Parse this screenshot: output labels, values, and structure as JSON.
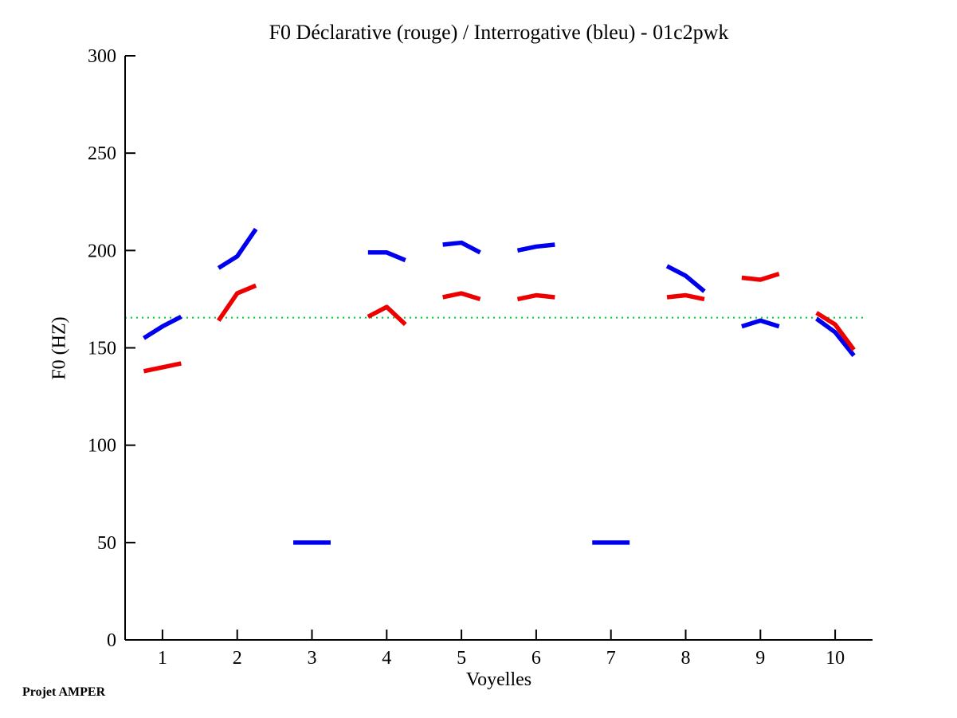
{
  "figure": {
    "background": "#FFFFFF"
  },
  "chart_data": {
    "type": "line",
    "title": "F0 Déclarative (rouge) / Interrogative (bleu) - 01c2pwk",
    "xlabel": "Voyelles",
    "ylabel": "F0 (HZ)",
    "footer": "Projet AMPER",
    "xlim": [
      0.5,
      10.5
    ],
    "ylim": [
      0,
      300
    ],
    "x_ticks": [
      1,
      2,
      3,
      4,
      5,
      6,
      7,
      8,
      9,
      10
    ],
    "y_ticks": [
      0,
      50,
      100,
      150,
      200,
      250,
      300
    ],
    "grid": false,
    "axis_color": "#000000",
    "legend_position": "none",
    "reference_line": {
      "y": 165.5,
      "color": "#00CC33",
      "style": "dotted",
      "x_start": 0.5,
      "x_end": 10.42
    },
    "series": [
      {
        "name": "interrogative",
        "label": "Interrogative (bleu)",
        "color": "#0000EE",
        "segments": [
          {
            "x": [
              0.75,
              1.0,
              1.25
            ],
            "y": [
              155,
              161,
              166
            ]
          },
          {
            "x": [
              1.75,
              2.0,
              2.25
            ],
            "y": [
              191,
              197,
              211
            ]
          },
          {
            "x": [
              2.75,
              3.0,
              3.25
            ],
            "y": [
              50,
              50,
              50
            ]
          },
          {
            "x": [
              3.75,
              4.0,
              4.25
            ],
            "y": [
              199,
              199,
              195
            ]
          },
          {
            "x": [
              4.75,
              5.0,
              5.25
            ],
            "y": [
              203,
              204,
              199
            ]
          },
          {
            "x": [
              5.75,
              6.0,
              6.25
            ],
            "y": [
              200,
              202,
              203
            ]
          },
          {
            "x": [
              6.75,
              7.0,
              7.25
            ],
            "y": [
              50,
              50,
              50
            ]
          },
          {
            "x": [
              7.75,
              8.0,
              8.25
            ],
            "y": [
              192,
              187,
              179
            ]
          },
          {
            "x": [
              8.75,
              9.0,
              9.25
            ],
            "y": [
              161,
              164,
              161
            ]
          },
          {
            "x": [
              9.75,
              10.0,
              10.25
            ],
            "y": [
              165,
              158,
              146
            ]
          }
        ]
      },
      {
        "name": "declarative",
        "label": "Déclarative (rouge)",
        "color": "#EE0000",
        "segments": [
          {
            "x": [
              0.75,
              1.0,
              1.25
            ],
            "y": [
              138,
              140,
              142
            ]
          },
          {
            "x": [
              1.75,
              2.0,
              2.25
            ],
            "y": [
              164,
              178,
              182
            ]
          },
          {
            "x": [
              3.75,
              4.0,
              4.25
            ],
            "y": [
              166,
              171,
              162
            ]
          },
          {
            "x": [
              4.75,
              5.0,
              5.25
            ],
            "y": [
              176,
              178,
              175
            ]
          },
          {
            "x": [
              5.75,
              6.0,
              6.25
            ],
            "y": [
              175,
              177,
              176
            ]
          },
          {
            "x": [
              7.75,
              8.0,
              8.25
            ],
            "y": [
              176,
              177,
              175
            ]
          },
          {
            "x": [
              8.75,
              9.0,
              9.25
            ],
            "y": [
              186,
              185,
              188
            ]
          },
          {
            "x": [
              9.75,
              10.0,
              10.25
            ],
            "y": [
              168,
              162,
              149
            ]
          }
        ]
      }
    ]
  }
}
